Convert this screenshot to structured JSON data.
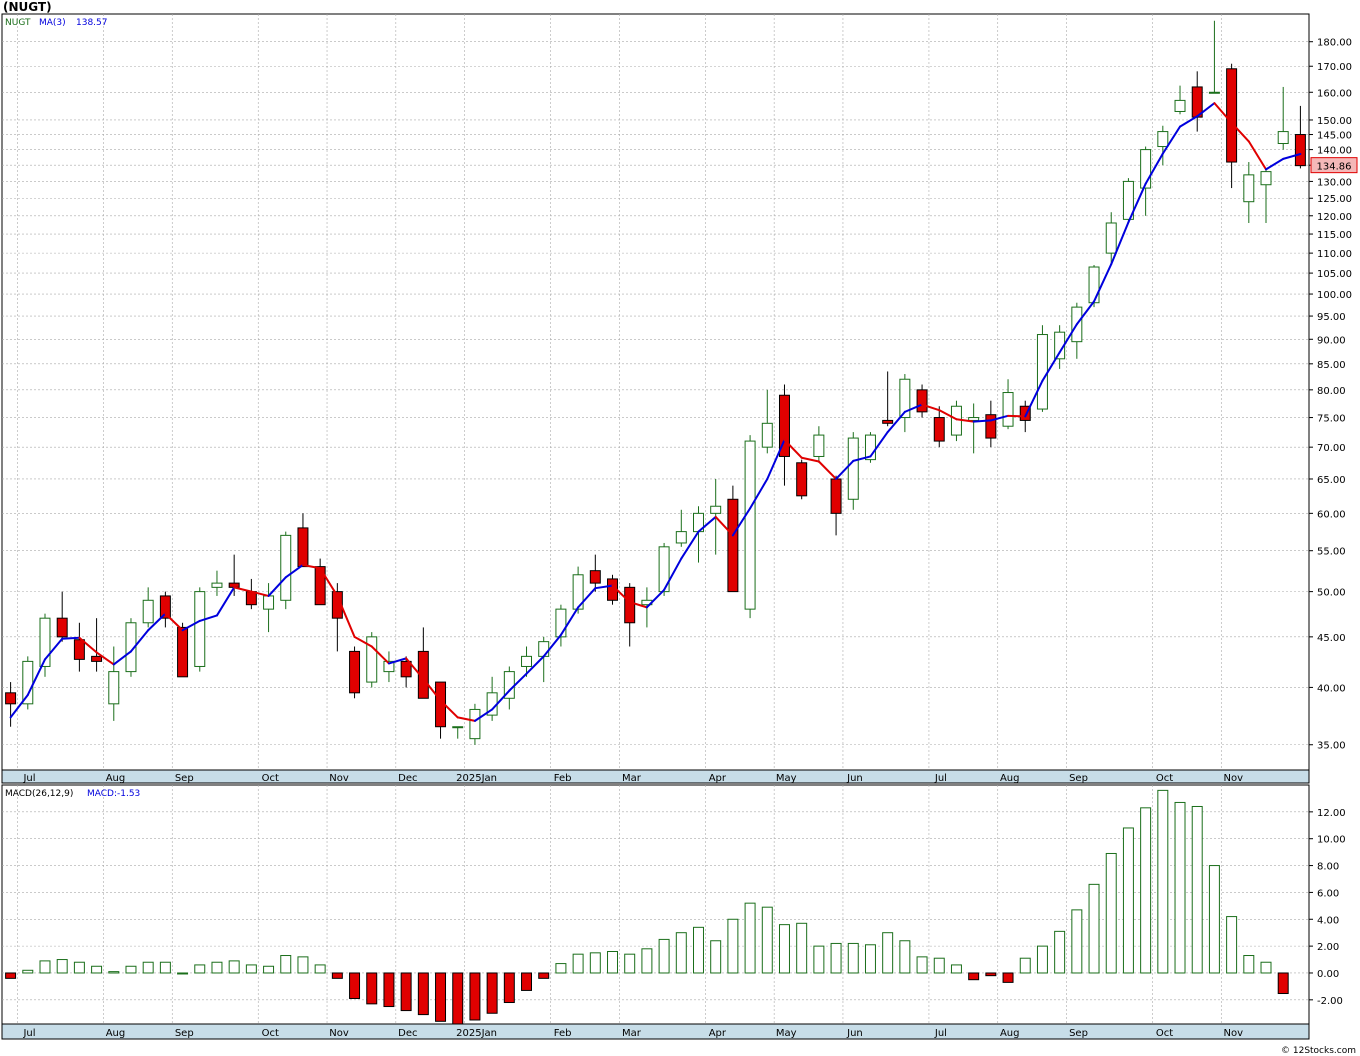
{
  "title": "(NUGT)",
  "credit": "© 12Stocks.com",
  "colors": {
    "up": "#1a6e1a",
    "down": "#e00000",
    "ma_up": "#0000dd",
    "ma_down": "#e00000",
    "grid": "#aaaaaa",
    "axis_band": "#c7dde8",
    "last_price_bg": "#f4b8b8"
  },
  "legends": {
    "price": {
      "symbol": "NUGT",
      "ma_label": "MA(3)",
      "ma_value": "138.57"
    },
    "macd": {
      "label": "MACD(26,12,9)",
      "sub_label": "MACD:",
      "sub_value": "-1.53"
    }
  },
  "last_price": "134.86",
  "chart_data": [
    {
      "type": "candlestick",
      "name": "price",
      "scale": "log",
      "ylim": [
        33,
        192
      ],
      "yticks": [
        "35.00",
        "40.00",
        "45.00",
        "50.00",
        "55.00",
        "60.00",
        "65.00",
        "70.00",
        "75.00",
        "80.00",
        "85.00",
        "90.00",
        "95.00",
        "100.00",
        "105.00",
        "110.00",
        "115.00",
        "120.00",
        "125.00",
        "130.00",
        "135.00",
        "140.00",
        "145.00",
        "150.00",
        "160.00",
        "170.00",
        "180.00"
      ],
      "month_labels": [
        {
          "label": "Jul",
          "i": 1
        },
        {
          "label": "Aug",
          "i": 6
        },
        {
          "label": "Sep",
          "i": 10
        },
        {
          "label": "Oct",
          "i": 15
        },
        {
          "label": "Nov",
          "i": 19
        },
        {
          "label": "Dec",
          "i": 23
        },
        {
          "label": "2025Jan",
          "i": 27
        },
        {
          "label": "Feb",
          "i": 32
        },
        {
          "label": "Mar",
          "i": 36
        },
        {
          "label": "Apr",
          "i": 41
        },
        {
          "label": "May",
          "i": 45
        },
        {
          "label": "Jun",
          "i": 49
        },
        {
          "label": "Jul",
          "i": 54
        },
        {
          "label": "Aug",
          "i": 58
        },
        {
          "label": "Sep",
          "i": 62
        },
        {
          "label": "Oct",
          "i": 67
        },
        {
          "label": "Nov",
          "i": 71
        }
      ],
      "candles": [
        [
          39.5,
          40.5,
          36.5,
          38.5
        ],
        [
          38.5,
          43.0,
          38.0,
          42.5
        ],
        [
          42.0,
          47.5,
          41.0,
          47.0
        ],
        [
          47.0,
          50.0,
          44.5,
          45.0
        ],
        [
          44.7,
          46.5,
          41.5,
          42.7
        ],
        [
          43.0,
          47.0,
          41.5,
          42.5
        ],
        [
          38.5,
          44.0,
          37.0,
          41.5
        ],
        [
          41.5,
          47.0,
          41.0,
          46.5
        ],
        [
          46.5,
          50.5,
          46.0,
          49.0
        ],
        [
          49.5,
          50.0,
          46.0,
          47.0
        ],
        [
          46.0,
          46.5,
          41.0,
          41.0
        ],
        [
          42.0,
          50.5,
          41.5,
          50.0
        ],
        [
          50.5,
          52.5,
          49.5,
          51.0
        ],
        [
          51.0,
          54.5,
          49.5,
          50.5
        ],
        [
          50.0,
          51.5,
          48.0,
          48.5
        ],
        [
          48.0,
          51.0,
          45.5,
          49.5
        ],
        [
          49.0,
          57.5,
          48.0,
          57.0
        ],
        [
          58.0,
          60.0,
          53.0,
          53.0
        ],
        [
          53.0,
          54.0,
          48.5,
          48.5
        ],
        [
          50.0,
          51.0,
          43.5,
          47.0
        ],
        [
          43.5,
          44.0,
          39.0,
          39.5
        ],
        [
          40.5,
          45.5,
          40.0,
          45.0
        ],
        [
          41.5,
          43.5,
          40.5,
          42.5
        ],
        [
          42.5,
          43.0,
          40.0,
          41.0
        ],
        [
          43.5,
          46.0,
          39.0,
          39.0
        ],
        [
          40.5,
          40.5,
          35.5,
          36.5
        ],
        [
          36.5,
          36.5,
          35.5,
          36.5
        ],
        [
          35.5,
          38.5,
          35.0,
          38.0
        ],
        [
          37.5,
          41.0,
          37.0,
          39.5
        ],
        [
          39.0,
          42.0,
          38.0,
          41.5
        ],
        [
          42.0,
          44.0,
          41.0,
          43.0
        ],
        [
          43.0,
          45.0,
          40.5,
          44.5
        ],
        [
          45.0,
          48.5,
          44.0,
          48.0
        ],
        [
          48.0,
          53.0,
          47.5,
          52.0
        ],
        [
          52.5,
          54.5,
          50.0,
          51.0
        ],
        [
          51.5,
          52.0,
          48.5,
          49.0
        ],
        [
          50.5,
          51.0,
          44.0,
          46.5
        ],
        [
          48.5,
          50.5,
          46.0,
          49.0
        ],
        [
          50.0,
          56.0,
          49.5,
          55.5
        ],
        [
          56.0,
          60.5,
          55.5,
          57.5
        ],
        [
          57.5,
          61.0,
          53.5,
          60.0
        ],
        [
          60.0,
          65.0,
          54.5,
          61.0
        ],
        [
          62.0,
          64.0,
          50.0,
          50.0
        ],
        [
          48.0,
          72.0,
          47.0,
          71.0
        ],
        [
          70.0,
          80.0,
          69.0,
          74.0
        ],
        [
          79.0,
          81.0,
          64.0,
          68.5
        ],
        [
          67.5,
          68.0,
          62.0,
          62.5
        ],
        [
          68.5,
          73.5,
          67.5,
          72.0
        ],
        [
          65.0,
          65.5,
          57.0,
          60.0
        ],
        [
          62.0,
          72.5,
          60.5,
          71.5
        ],
        [
          68.0,
          72.5,
          67.5,
          72.0
        ],
        [
          74.5,
          83.5,
          73.5,
          74.0
        ],
        [
          75.0,
          83.0,
          72.5,
          82.0
        ],
        [
          80.0,
          81.0,
          75.0,
          76.0
        ],
        [
          75.0,
          77.0,
          70.0,
          71.0
        ],
        [
          72.0,
          78.0,
          71.0,
          77.0
        ],
        [
          74.5,
          77.5,
          69.0,
          75.0
        ],
        [
          75.5,
          78.0,
          70.0,
          71.5
        ],
        [
          73.5,
          82.0,
          73.0,
          79.5
        ],
        [
          77.0,
          78.0,
          72.5,
          74.5
        ],
        [
          76.5,
          93.0,
          76.0,
          91.0
        ],
        [
          86.0,
          93.0,
          84.0,
          91.5
        ],
        [
          89.5,
          98.0,
          86.0,
          97.0
        ],
        [
          98.0,
          107.0,
          97.0,
          106.5
        ],
        [
          110.0,
          121.0,
          107.5,
          118.0
        ],
        [
          119.0,
          131.0,
          118.5,
          130.0
        ],
        [
          128.0,
          141.0,
          120.0,
          140.0
        ],
        [
          141.0,
          148.0,
          135.0,
          146.0
        ],
        [
          153.0,
          162.5,
          152.0,
          157.0
        ],
        [
          162.0,
          168.0,
          146.0,
          151.0
        ],
        [
          160.0,
          189.0,
          160.0,
          160.0
        ],
        [
          169.0,
          171.0,
          128.0,
          136.0
        ],
        [
          124.0,
          136.0,
          118.0,
          132.0
        ],
        [
          129.0,
          134.0,
          118.0,
          133.0
        ],
        [
          142.0,
          162.0,
          140.0,
          146.0
        ],
        [
          145.0,
          155.0,
          134.0,
          134.86
        ]
      ],
      "ma3": [
        37.3,
        39.3,
        42.7,
        44.8,
        44.9,
        43.4,
        42.2,
        43.5,
        45.7,
        47.5,
        45.7,
        46.7,
        47.3,
        50.5,
        50.0,
        49.5,
        51.7,
        53.2,
        52.8,
        49.5,
        45.0,
        44.0,
        42.3,
        42.8,
        40.8,
        38.8,
        37.3,
        37.0,
        38.0,
        39.7,
        41.3,
        43.0,
        45.2,
        48.2,
        50.4,
        50.7,
        48.8,
        48.2,
        50.2,
        54.0,
        57.5,
        59.5,
        57.0,
        60.7,
        65.0,
        71.2,
        68.3,
        67.7,
        65.0,
        67.8,
        68.5,
        72.5,
        76.0,
        77.3,
        76.3,
        74.7,
        74.3,
        74.5,
        75.3,
        75.2,
        81.7,
        87.3,
        93.2,
        98.3,
        107.2,
        118.2,
        129.3,
        138.7,
        147.7,
        151.3,
        156.0,
        149.0,
        142.7,
        133.7,
        137.0,
        138.57
      ]
    },
    {
      "type": "bar",
      "name": "MACD(26,12,9)",
      "ylim": [
        -3.8,
        14.0
      ],
      "yticks": [
        "-2.00",
        "0.00",
        "2.00",
        "4.00",
        "6.00",
        "8.00",
        "10.00",
        "12.00"
      ],
      "values": [
        -0.4,
        0.2,
        0.9,
        1.0,
        0.8,
        0.5,
        0.1,
        0.5,
        0.8,
        0.8,
        0.0,
        0.6,
        0.8,
        0.9,
        0.6,
        0.5,
        1.3,
        1.2,
        0.6,
        -0.4,
        -1.9,
        -2.3,
        -2.5,
        -2.8,
        -3.1,
        -3.6,
        -3.8,
        -3.5,
        -3.0,
        -2.2,
        -1.3,
        -0.4,
        0.7,
        1.4,
        1.5,
        1.6,
        1.4,
        1.8,
        2.5,
        3.0,
        3.4,
        2.4,
        4.0,
        5.2,
        4.9,
        3.6,
        3.7,
        2.0,
        2.2,
        2.2,
        2.1,
        3.0,
        2.4,
        1.2,
        1.1,
        0.6,
        -0.5,
        -0.2,
        -0.7,
        1.1,
        2.0,
        3.1,
        4.7,
        6.6,
        8.9,
        10.8,
        12.3,
        13.6,
        12.7,
        12.4,
        8.0,
        4.2,
        1.3,
        0.8,
        -1.53
      ]
    }
  ]
}
